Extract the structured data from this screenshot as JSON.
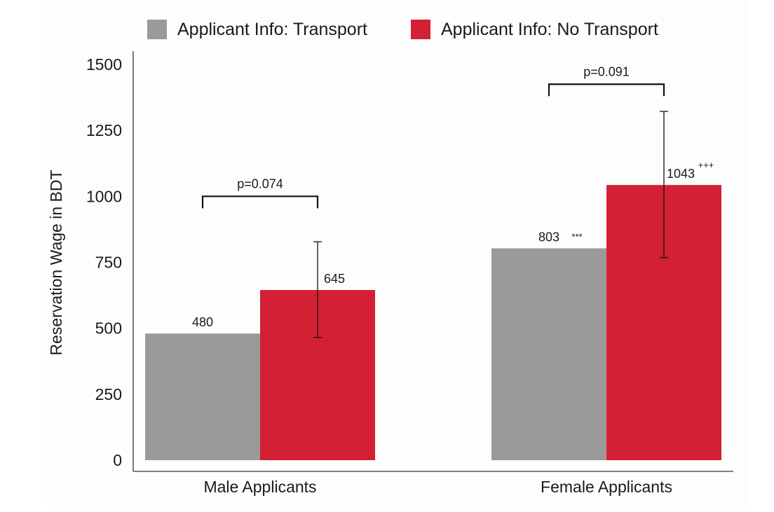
{
  "chart_data": {
    "type": "bar",
    "title": "",
    "xlabel": "",
    "ylabel": "Reservation Wage in BDT",
    "ylim": [
      0,
      1500
    ],
    "yticks": [
      0,
      250,
      500,
      750,
      1000,
      1250,
      1500
    ],
    "categories": [
      "Male Applicants",
      "Female Applicants"
    ],
    "series": [
      {
        "name": "Applicant Info: Transport",
        "color": "#9b9a9b",
        "values": [
          480,
          803
        ],
        "labels": [
          "480",
          "803"
        ],
        "label_suffix": [
          "",
          "***"
        ],
        "error_low": [
          null,
          null
        ],
        "error_high": [
          null,
          null
        ]
      },
      {
        "name": "Applicant Info: No Transport",
        "color": "#d42035",
        "values": [
          645,
          1043
        ],
        "labels": [
          "645",
          "1043"
        ],
        "label_suffix": [
          "",
          "+++"
        ],
        "error_low": [
          465,
          768
        ],
        "error_high": [
          828,
          1322
        ]
      }
    ],
    "comparisons": [
      {
        "category_index": 0,
        "text": "p=0.074",
        "y": 1000
      },
      {
        "category_index": 1,
        "text": "p=0.091",
        "y": 1425
      }
    ],
    "legend_position": "top",
    "grid": false
  }
}
